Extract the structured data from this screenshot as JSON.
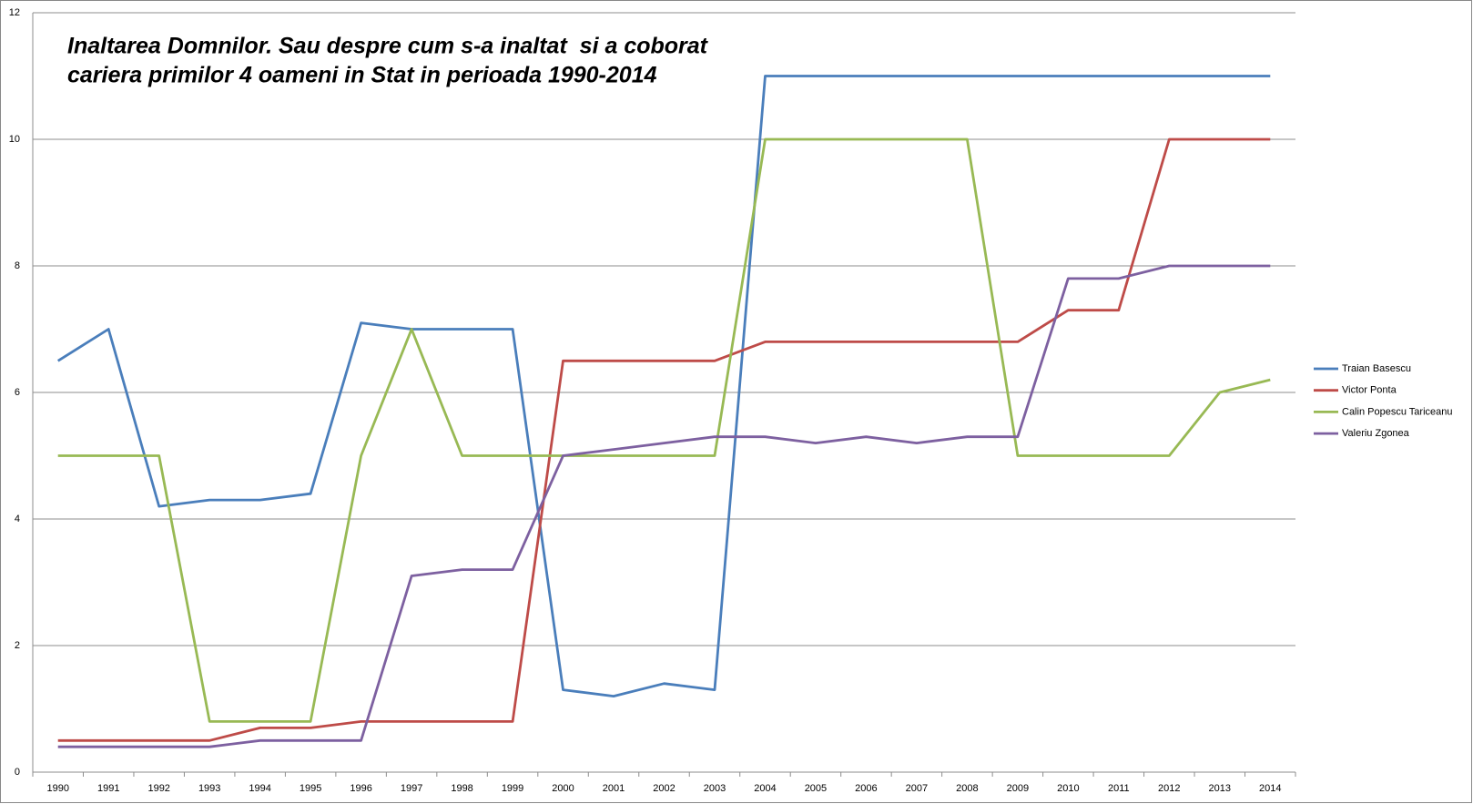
{
  "chart_data": {
    "type": "line",
    "title": [
      "Inaltarea Domnilor. Sau despre cum s-a inaltat  si a coborat",
      "cariera primilor 4 oameni in Stat in perioada 1990-2014"
    ],
    "categories": [
      "1990",
      "1991",
      "1992",
      "1993",
      "1994",
      "1995",
      "1996",
      "1997",
      "1998",
      "1999",
      "2000",
      "2001",
      "2002",
      "2003",
      "2004",
      "2005",
      "2006",
      "2007",
      "2008",
      "2009",
      "2010",
      "2011",
      "2012",
      "2013",
      "2014"
    ],
    "series": [
      {
        "name": "Traian Basescu",
        "color": "#4a7ebb",
        "values": [
          6.5,
          7,
          4.2,
          4.3,
          4.3,
          4.4,
          7.1,
          7,
          7,
          7,
          1.3,
          1.2,
          1.4,
          1.3,
          11,
          11,
          11,
          11,
          11,
          11,
          11,
          11,
          11,
          11,
          11
        ]
      },
      {
        "name": "Victor Ponta",
        "color": "#be4b48",
        "values": [
          0.5,
          0.5,
          0.5,
          0.5,
          0.7,
          0.7,
          0.8,
          0.8,
          0.8,
          0.8,
          6.5,
          6.5,
          6.5,
          6.5,
          6.8,
          6.8,
          6.8,
          6.8,
          6.8,
          6.8,
          7.3,
          7.3,
          10,
          10,
          10
        ]
      },
      {
        "name": "Calin Popescu Tariceanu",
        "color": "#98b954",
        "values": [
          5,
          5,
          5,
          0.8,
          0.8,
          0.8,
          5,
          7,
          5,
          5,
          5,
          5,
          5,
          5,
          10,
          10,
          10,
          10,
          10,
          5,
          5,
          5,
          5,
          6,
          6.2
        ]
      },
      {
        "name": "Valeriu Zgonea",
        "color": "#7d60a0",
        "values": [
          0.4,
          0.4,
          0.4,
          0.4,
          0.5,
          0.5,
          0.5,
          3.1,
          3.2,
          3.2,
          5,
          5.1,
          5.2,
          5.3,
          5.3,
          5.2,
          5.3,
          5.2,
          5.3,
          5.3,
          7.8,
          7.8,
          8,
          8,
          8
        ]
      }
    ],
    "ylim": [
      0,
      12
    ],
    "yticks": [
      0,
      2,
      4,
      6,
      8,
      10,
      12
    ],
    "grid": true,
    "legend": "right"
  }
}
